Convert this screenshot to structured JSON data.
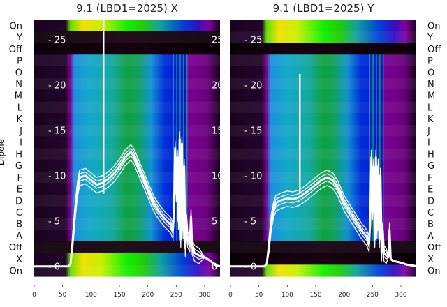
{
  "chart_data": {
    "type": "heatmap",
    "ylabel": "Dipole",
    "row_labels": [
      "On",
      "Y",
      "Off",
      "P",
      "O",
      "N",
      "M",
      "L",
      "K",
      "J",
      "I",
      "H",
      "G",
      "F",
      "E",
      "D",
      "C",
      "B",
      "A",
      "Off",
      "X",
      "On"
    ],
    "xticks": [
      0,
      50,
      100,
      150,
      200,
      250,
      300
    ],
    "xlim": [
      0,
      328
    ],
    "overlay_yticks": [
      0,
      5,
      10,
      15,
      20,
      25
    ],
    "overlay_ylim": [
      -1.1,
      27.2
    ],
    "panels": [
      {
        "title": "9.1 (LBD1=2025) X",
        "bright_rows": [
          0,
          21,
          20
        ],
        "dark_rows": [
          1,
          2,
          19
        ],
        "overlay_profile": {
          "x": [
            0,
            60,
            64,
            68,
            72,
            76,
            80,
            90,
            100,
            110,
            120,
            130,
            140,
            150,
            160,
            170,
            175,
            180,
            190,
            200,
            210,
            220,
            230,
            240,
            244,
            246,
            248,
            250,
            252,
            254,
            256,
            258,
            260,
            262,
            264,
            266,
            268,
            270,
            274,
            276,
            278,
            282,
            290,
            300,
            310,
            320,
            328
          ],
          "y": [
            0,
            0,
            0.3,
            3,
            6,
            8.5,
            9.8,
            10,
            9.5,
            9,
            9.2,
            9.6,
            10.2,
            11,
            12,
            12.6,
            12.2,
            11.5,
            10,
            8.5,
            7,
            6,
            5.2,
            4.6,
            4,
            6,
            13,
            8,
            12,
            5,
            14,
            3,
            13.5,
            4,
            11,
            2,
            5,
            3,
            2.5,
            5.5,
            2.2,
            1.5,
            1.2,
            1,
            0.6,
            0.1,
            0
          ],
          "spike": {
            "x": 122,
            "y": 27.2
          }
        }
      },
      {
        "title": "9.1 (LBD1=2025) Y",
        "bright_rows": [
          0,
          1,
          21
        ],
        "dark_rows": [
          2,
          19,
          20
        ],
        "overlay_profile": {
          "x": [
            0,
            60,
            64,
            68,
            72,
            76,
            80,
            90,
            100,
            110,
            120,
            130,
            140,
            150,
            160,
            170,
            180,
            190,
            200,
            210,
            220,
            230,
            240,
            244,
            246,
            248,
            250,
            252,
            254,
            256,
            258,
            260,
            262,
            264,
            266,
            268,
            270,
            274,
            278,
            280,
            282,
            286,
            300,
            310,
            320,
            328
          ],
          "y": [
            0,
            0,
            0.3,
            2.5,
            5,
            6.3,
            7,
            7.3,
            7.5,
            7.4,
            7.6,
            8,
            8.5,
            9,
            9.5,
            9.8,
            9.5,
            8.5,
            7,
            6,
            5,
            4,
            3.2,
            2.5,
            5,
            12,
            6,
            11,
            3,
            12,
            4,
            11,
            3,
            10,
            1.5,
            4,
            1.5,
            1.2,
            1,
            4,
            0.8,
            0.6,
            0.4,
            0.2,
            0.1,
            0
          ],
          "spike": {
            "x": 122,
            "y": 21.2
          }
        }
      }
    ]
  }
}
